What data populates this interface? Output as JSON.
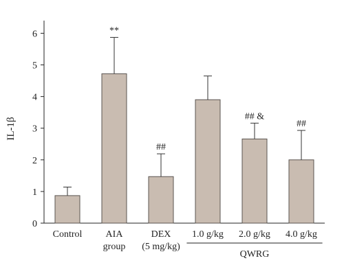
{
  "chart_data": {
    "type": "bar",
    "ylabel": "IL-1β",
    "ylim": [
      0,
      6.4
    ],
    "yticks": [
      0,
      1,
      2,
      3,
      4,
      5,
      6
    ],
    "bar_color": "#c9bcb1",
    "bar_edge": "#5a5450",
    "categories": [
      {
        "lines": [
          "Control"
        ]
      },
      {
        "lines": [
          "AIA",
          "group"
        ]
      },
      {
        "lines": [
          "DEX",
          "(5 mg/kg)"
        ]
      },
      {
        "lines": [
          "1.0 g/kg"
        ]
      },
      {
        "lines": [
          "2.0 g/kg"
        ]
      },
      {
        "lines": [
          "4.0 g/kg"
        ]
      }
    ],
    "values": [
      0.87,
      4.72,
      1.47,
      3.9,
      2.66,
      2.0
    ],
    "errors": [
      0.27,
      1.15,
      0.72,
      0.75,
      0.5,
      0.93
    ],
    "annotations": [
      "",
      "**",
      "##",
      "",
      "## &",
      "##"
    ],
    "group_label": {
      "text": "QWRG",
      "span": [
        3,
        5
      ]
    }
  }
}
